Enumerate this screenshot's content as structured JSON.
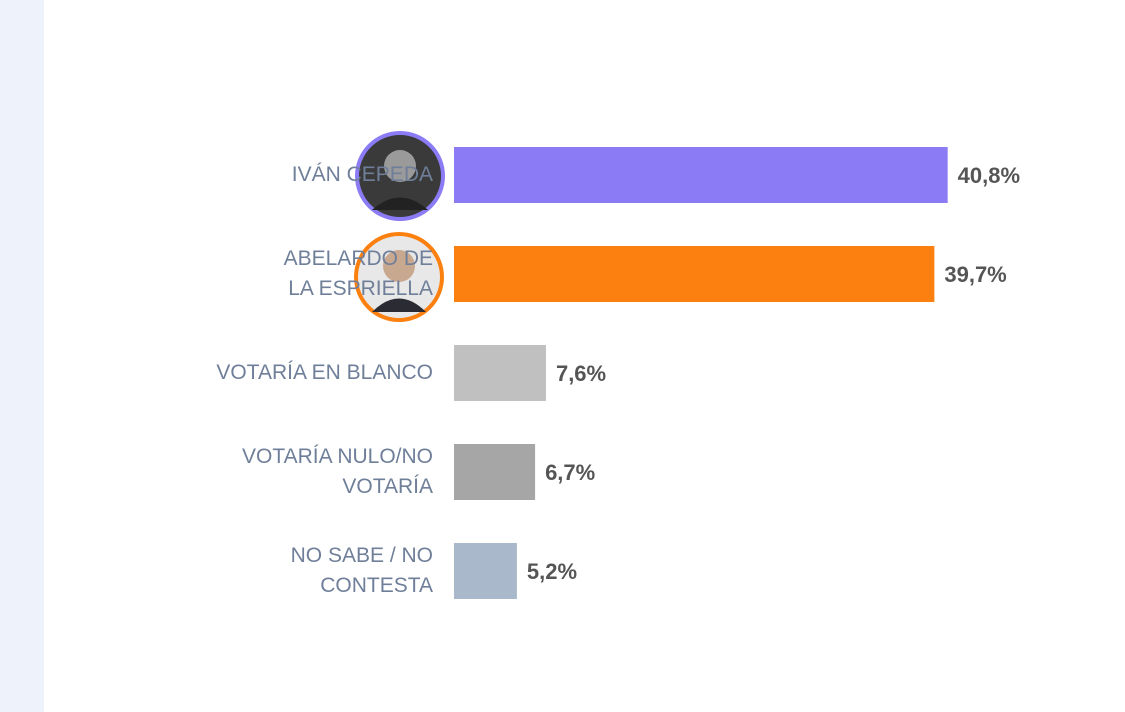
{
  "chart_data": {
    "type": "bar",
    "orientation": "horizontal",
    "categories": [
      "IVÁN CEPEDA",
      "ABELARDO DE\nLA ESPRIELLA",
      "VOTARÍA EN BLANCO",
      "VOTARÍA NULO/NO\nVOTARÍA",
      "NO SABE / NO\nCONTESTA"
    ],
    "values": [
      40.8,
      39.7,
      7.6,
      6.7,
      5.2
    ],
    "value_labels": [
      "40,8%",
      "39,7%",
      "7,6%",
      "6,7%",
      "5,2%"
    ],
    "colors": [
      "#8b7cf6",
      "#fb8010",
      "#c0c0c0",
      "#a6a6a6",
      "#aab8cc"
    ]
  }
}
